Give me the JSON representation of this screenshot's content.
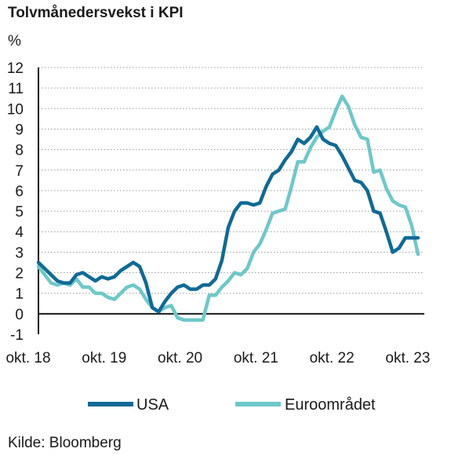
{
  "chart_data": {
    "type": "line",
    "title": "Tolvmånedersvekst i KPI",
    "ylabel": "%",
    "ylim": [
      -1,
      12
    ],
    "yticks": [
      -1,
      0,
      1,
      2,
      3,
      4,
      5,
      6,
      7,
      8,
      9,
      10,
      11,
      12
    ],
    "xlim": [
      0,
      61
    ],
    "xticks": [
      {
        "label": "okt. 18",
        "x": 0
      },
      {
        "label": "okt. 19",
        "x": 12
      },
      {
        "label": "okt. 20",
        "x": 24
      },
      {
        "label": "okt. 21",
        "x": 36
      },
      {
        "label": "okt. 22",
        "x": 48
      },
      {
        "label": "okt. 23",
        "x": 60
      }
    ],
    "grid": true,
    "legend": "bottom",
    "series": [
      {
        "name": "USA",
        "color": "#0f6a97",
        "values": [
          2.5,
          2.2,
          1.9,
          1.6,
          1.5,
          1.5,
          1.9,
          2.0,
          1.8,
          1.6,
          1.8,
          1.7,
          1.8,
          2.1,
          2.3,
          2.5,
          2.3,
          1.5,
          0.3,
          0.1,
          0.6,
          1.0,
          1.3,
          1.4,
          1.2,
          1.2,
          1.4,
          1.4,
          1.7,
          2.6,
          4.2,
          5.0,
          5.4,
          5.4,
          5.3,
          5.4,
          6.2,
          6.8,
          7.0,
          7.5,
          7.9,
          8.5,
          8.3,
          8.6,
          9.1,
          8.5,
          8.3,
          8.2,
          7.7,
          7.1,
          6.5,
          6.4,
          6.0,
          5.0,
          4.9,
          4.0,
          3.0,
          3.2,
          3.7,
          3.7,
          3.7
        ]
      },
      {
        "name": "Euroområdet",
        "color": "#6ec8c9",
        "values": [
          2.3,
          1.9,
          1.5,
          1.4,
          1.5,
          1.4,
          1.7,
          1.3,
          1.3,
          1.0,
          1.0,
          0.8,
          0.7,
          1.0,
          1.3,
          1.4,
          1.2,
          0.7,
          0.3,
          0.1,
          0.3,
          0.4,
          -0.2,
          -0.3,
          -0.3,
          -0.3,
          -0.3,
          0.9,
          0.9,
          1.3,
          1.6,
          2.0,
          1.9,
          2.2,
          3.0,
          3.4,
          4.1,
          4.9,
          5.0,
          5.1,
          6.2,
          7.4,
          7.4,
          8.1,
          8.6,
          8.9,
          9.1,
          9.9,
          10.6,
          10.1,
          9.2,
          8.6,
          8.5,
          6.9,
          7.0,
          6.1,
          5.5,
          5.3,
          5.2,
          4.3,
          2.9
        ]
      }
    ]
  },
  "source": "Kilde: Bloomberg"
}
